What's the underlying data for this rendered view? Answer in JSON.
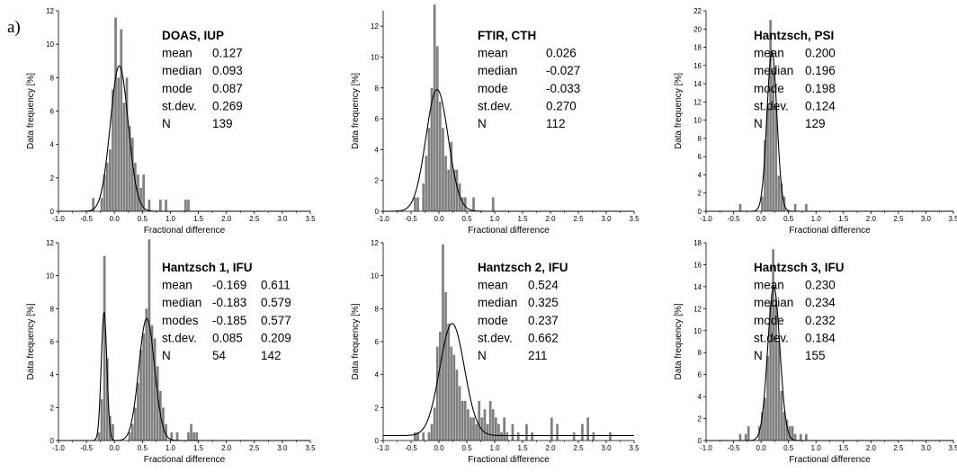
{
  "figure_label": "a)",
  "chart_data": [
    {
      "type": "bar",
      "title": "DOAS, IUP",
      "xlabel": "Fractional difference",
      "ylabel": "Data frequency [%]",
      "xlim": [
        -1.0,
        3.5
      ],
      "ylim": [
        0,
        12
      ],
      "x_ticks": [
        "-1.0",
        "-0.5",
        "0.0",
        "0.5",
        "1.0",
        "1.5",
        "2.0",
        "2.5",
        "3.0",
        "3.5"
      ],
      "y_ticks": [
        "0",
        "2",
        "4",
        "6",
        "8",
        "10",
        "12"
      ],
      "bin_width": 0.05,
      "bins": [
        [
          -0.4,
          0.8
        ],
        [
          -0.25,
          0.8
        ],
        [
          -0.2,
          2.2
        ],
        [
          -0.15,
          2.9
        ],
        [
          -0.1,
          3.7
        ],
        [
          -0.05,
          7.3
        ],
        [
          0.0,
          11.6
        ],
        [
          0.05,
          8.0
        ],
        [
          0.1,
          10.9
        ],
        [
          0.15,
          6.5
        ],
        [
          0.2,
          8.0
        ],
        [
          0.25,
          5.1
        ],
        [
          0.3,
          4.4
        ],
        [
          0.35,
          2.9
        ],
        [
          0.4,
          2.2
        ],
        [
          0.45,
          1.4
        ],
        [
          0.5,
          2.2
        ],
        [
          0.6,
          0.7
        ],
        [
          0.8,
          0.7
        ],
        [
          0.9,
          0.7
        ],
        [
          1.25,
          0.7
        ],
        [
          1.3,
          0.7
        ]
      ],
      "fit": {
        "mu": 0.087,
        "sigma": 0.16,
        "peak": 8.7
      },
      "stats": {
        "labels": [
          "mean",
          "median",
          "mode",
          "st.dev.",
          "N"
        ],
        "values": [
          "0.127",
          "0.093",
          "0.087",
          "0.269",
          "139"
        ]
      }
    },
    {
      "type": "bar",
      "title": "FTIR, CTH",
      "xlabel": "Fractional difference",
      "ylabel": "Data frequency [%]",
      "xlim": [
        -1.0,
        3.5
      ],
      "ylim": [
        0,
        13
      ],
      "x_ticks": [
        "-1.0",
        "-0.5",
        "0.0",
        "0.5",
        "1.0",
        "1.5",
        "2.0",
        "2.5",
        "3.0",
        "3.5"
      ],
      "y_ticks": [
        "0",
        "2",
        "4",
        "6",
        "8",
        "10",
        "12"
      ],
      "bin_width": 0.05,
      "bins": [
        [
          -0.45,
          0.9
        ],
        [
          -0.4,
          0.9
        ],
        [
          -0.3,
          1.8
        ],
        [
          -0.25,
          3.6
        ],
        [
          -0.2,
          5.4
        ],
        [
          -0.15,
          8.0
        ],
        [
          -0.1,
          13.4
        ],
        [
          -0.05,
          10.7
        ],
        [
          0.0,
          7.1
        ],
        [
          0.05,
          5.4
        ],
        [
          0.1,
          3.6
        ],
        [
          0.15,
          2.7
        ],
        [
          0.2,
          4.5
        ],
        [
          0.25,
          2.7
        ],
        [
          0.3,
          2.7
        ],
        [
          0.35,
          1.8
        ],
        [
          0.4,
          0.9
        ],
        [
          0.45,
          0.9
        ],
        [
          0.6,
          0.9
        ],
        [
          0.95,
          0.9
        ]
      ],
      "fit": {
        "mu": -0.033,
        "sigma": 0.2,
        "peak": 7.9
      },
      "stats": {
        "labels": [
          "mean",
          "median",
          "mode",
          "st.dev.",
          "N"
        ],
        "values": [
          "0.026",
          "-0.027",
          "-0.033",
          "0.270",
          "112"
        ]
      }
    },
    {
      "type": "bar",
      "title": "Hantzsch, PSI",
      "xlabel": "Fractional difference",
      "ylabel": "Data frequency [%]",
      "xlim": [
        -1.0,
        3.5
      ],
      "ylim": [
        0,
        22
      ],
      "x_ticks": [
        "-1.0",
        "-0.5",
        "0.0",
        "0.5",
        "1.0",
        "1.5",
        "2.0",
        "2.5",
        "3.0",
        "3.5"
      ],
      "y_ticks": [
        "0",
        "2",
        "4",
        "6",
        "8",
        "10",
        "12",
        "14",
        "16",
        "18",
        "20",
        "22"
      ],
      "bin_width": 0.05,
      "bins": [
        [
          -0.4,
          0.8
        ],
        [
          0.0,
          1.6
        ],
        [
          0.05,
          7.8
        ],
        [
          0.1,
          11.6
        ],
        [
          0.15,
          21.0
        ],
        [
          0.2,
          15.5
        ],
        [
          0.25,
          11.6
        ],
        [
          0.3,
          3.9
        ],
        [
          0.35,
          3.1
        ],
        [
          0.4,
          1.6
        ],
        [
          0.6,
          0.8
        ],
        [
          0.8,
          0.8
        ]
      ],
      "fit": {
        "mu": 0.198,
        "sigma": 0.09,
        "peak": 17.6
      },
      "stats": {
        "labels": [
          "mean",
          "median",
          "mode",
          "st.dev.",
          "N"
        ],
        "values": [
          "0.200",
          "0.196",
          "0.198",
          "0.124",
          "129"
        ]
      }
    },
    {
      "type": "bar",
      "title": "Hantzsch 1, IFU",
      "xlabel": "Fractional difference",
      "ylabel": "Data frequency [%]",
      "xlim": [
        -1.0,
        3.5
      ],
      "ylim": [
        0,
        12
      ],
      "x_ticks": [
        "-1.0",
        "-0.5",
        "0.0",
        "0.5",
        "1.0",
        "1.5",
        "2.0",
        "2.5",
        "3.0",
        "3.5"
      ],
      "y_ticks": [
        "0",
        "2",
        "4",
        "6",
        "8",
        "10",
        "12"
      ],
      "bin_width": 0.05,
      "bins": [
        [
          -0.3,
          0.5
        ],
        [
          -0.25,
          2.5
        ],
        [
          -0.2,
          11.2
        ],
        [
          -0.15,
          5.0
        ],
        [
          -0.1,
          1.5
        ],
        [
          -0.05,
          1.0
        ],
        [
          0.25,
          0.5
        ],
        [
          0.3,
          1.0
        ],
        [
          0.35,
          2.0
        ],
        [
          0.4,
          3.5
        ],
        [
          0.45,
          5.5
        ],
        [
          0.5,
          6.5
        ],
        [
          0.55,
          8.0
        ],
        [
          0.6,
          12.2
        ],
        [
          0.65,
          7.0
        ],
        [
          0.7,
          6.2
        ],
        [
          0.75,
          4.5
        ],
        [
          0.8,
          3.0
        ],
        [
          0.85,
          2.0
        ],
        [
          0.9,
          1.0
        ],
        [
          1.0,
          0.5
        ],
        [
          1.1,
          0.5
        ],
        [
          1.3,
          0.5
        ],
        [
          1.35,
          1.0
        ],
        [
          1.4,
          0.5
        ],
        [
          1.45,
          0.5
        ]
      ],
      "fit": {
        "components": [
          {
            "mu": -0.185,
            "sigma": 0.05,
            "peak": 7.8
          },
          {
            "mu": 0.577,
            "sigma": 0.14,
            "peak": 7.4
          }
        ]
      },
      "stats": {
        "labels": [
          "mean",
          "median",
          "modes",
          "st.dev.",
          "N"
        ],
        "values": [
          "-0.169",
          "-0.183",
          "-0.185",
          "0.085",
          "54"
        ],
        "values2": [
          "0.611",
          "0.579",
          "0.577",
          "0.209",
          "142"
        ]
      }
    },
    {
      "type": "bar",
      "title": "Hantzsch 2, IFU",
      "xlabel": "Fractional difference",
      "ylabel": "Data frequency [%]",
      "xlim": [
        -1.0,
        3.5
      ],
      "ylim": [
        0,
        12
      ],
      "x_ticks": [
        "-1.0",
        "-0.5",
        "0.0",
        "0.5",
        "1.0",
        "1.5",
        "2.0",
        "2.5",
        "3.0",
        "3.5"
      ],
      "y_ticks": [
        "0",
        "2",
        "4",
        "6",
        "8",
        "10",
        "12"
      ],
      "bin_width": 0.05,
      "bins": [
        [
          -0.45,
          0.5
        ],
        [
          -0.4,
          0.5
        ],
        [
          -0.3,
          0.5
        ],
        [
          -0.2,
          0.5
        ],
        [
          -0.15,
          1.0
        ],
        [
          -0.1,
          2.0
        ],
        [
          -0.05,
          5.7
        ],
        [
          0.0,
          6.6
        ],
        [
          0.05,
          11.9
        ],
        [
          0.1,
          9.0
        ],
        [
          0.15,
          7.1
        ],
        [
          0.2,
          5.7
        ],
        [
          0.25,
          5.2
        ],
        [
          0.3,
          4.3
        ],
        [
          0.35,
          3.3
        ],
        [
          0.4,
          2.4
        ],
        [
          0.45,
          2.4
        ],
        [
          0.5,
          1.9
        ],
        [
          0.55,
          1.4
        ],
        [
          0.6,
          1.4
        ],
        [
          0.65,
          1.0
        ],
        [
          0.7,
          2.4
        ],
        [
          0.75,
          1.4
        ],
        [
          0.8,
          1.9
        ],
        [
          0.85,
          1.0
        ],
        [
          0.9,
          2.4
        ],
        [
          0.95,
          1.9
        ],
        [
          1.0,
          1.4
        ],
        [
          1.05,
          1.0
        ],
        [
          1.1,
          0.5
        ],
        [
          1.15,
          1.4
        ],
        [
          1.2,
          0.5
        ],
        [
          1.3,
          1.0
        ],
        [
          1.4,
          0.5
        ],
        [
          1.55,
          1.0
        ],
        [
          1.65,
          0.5
        ],
        [
          2.0,
          1.4
        ],
        [
          2.1,
          1.0
        ],
        [
          2.4,
          0.5
        ],
        [
          2.55,
          1.0
        ],
        [
          2.65,
          1.4
        ],
        [
          2.75,
          0.5
        ],
        [
          3.05,
          0.5
        ]
      ],
      "fit": {
        "mu": 0.237,
        "sigma": 0.22,
        "peak": 6.8,
        "offset": 0.3
      },
      "stats": {
        "labels": [
          "mean",
          "median",
          "mode",
          "st.dev.",
          "N"
        ],
        "values": [
          "0.524",
          "0.325",
          "0.237",
          "0.662",
          "211"
        ]
      }
    },
    {
      "type": "bar",
      "title": "Hantzsch 3, IFU",
      "xlabel": "Fractional difference",
      "ylabel": "Data frequency [%]",
      "xlim": [
        -1.0,
        3.5
      ],
      "ylim": [
        0,
        18
      ],
      "x_ticks": [
        "-1.0",
        "-0.5",
        "0.0",
        "0.5",
        "1.0",
        "1.5",
        "2.0",
        "2.5",
        "3.0",
        "3.5"
      ],
      "y_ticks": [
        "0",
        "2",
        "4",
        "6",
        "8",
        "10",
        "12",
        "14",
        "16",
        "18"
      ],
      "bin_width": 0.05,
      "bins": [
        [
          -0.4,
          0.6
        ],
        [
          -0.3,
          0.6
        ],
        [
          -0.25,
          1.3
        ],
        [
          -0.05,
          1.3
        ],
        [
          0.0,
          2.6
        ],
        [
          0.05,
          3.9
        ],
        [
          0.1,
          7.7
        ],
        [
          0.15,
          12.3
        ],
        [
          0.2,
          17.4
        ],
        [
          0.25,
          12.3
        ],
        [
          0.3,
          9.0
        ],
        [
          0.35,
          4.5
        ],
        [
          0.4,
          2.6
        ],
        [
          0.45,
          1.9
        ],
        [
          0.5,
          1.3
        ],
        [
          0.55,
          1.3
        ],
        [
          0.6,
          0.6
        ],
        [
          0.7,
          0.6
        ],
        [
          0.8,
          0.6
        ]
      ],
      "fit": {
        "mu": 0.232,
        "sigma": 0.11,
        "peak": 14.0
      },
      "stats": {
        "labels": [
          "mean",
          "median",
          "mode",
          "st.dev.",
          "N"
        ],
        "values": [
          "0.230",
          "0.234",
          "0.232",
          "0.184",
          "155"
        ]
      }
    }
  ]
}
